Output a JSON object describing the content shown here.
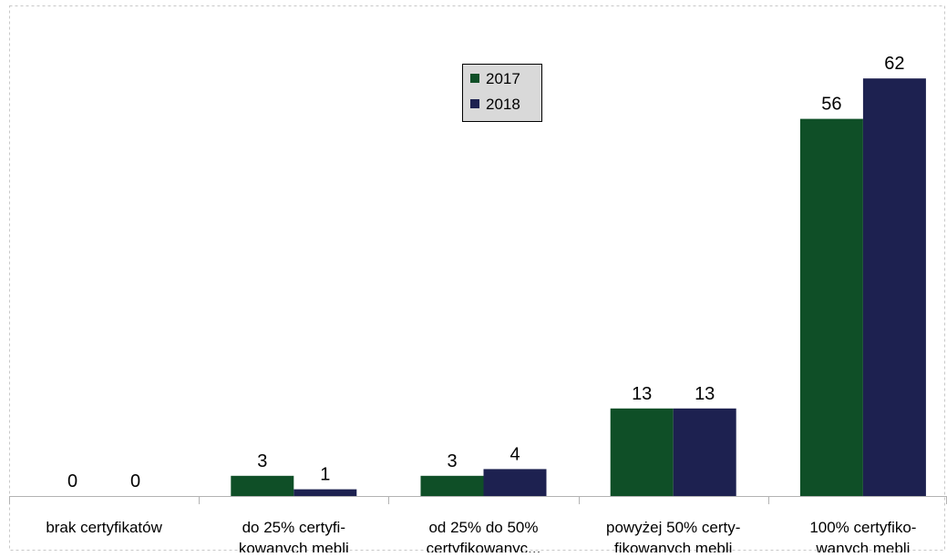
{
  "chart_data": {
    "type": "bar",
    "categories": [
      [
        "brak certyfikatów"
      ],
      [
        "do 25% certyfi-",
        "kowanych mebli"
      ],
      [
        "od 25% do 50%",
        "certyfikowanyc..."
      ],
      [
        "powyżej 50% certy-",
        "fikowanych mebli"
      ],
      [
        "100% certyfiko-",
        "wanych mebli"
      ]
    ],
    "series": [
      {
        "name": "2017",
        "values": [
          0,
          3,
          3,
          13,
          56
        ]
      },
      {
        "name": "2018",
        "values": [
          0,
          1,
          4,
          13,
          62
        ]
      }
    ],
    "ylim": [
      0,
      70
    ],
    "legend_position": "top-center",
    "data_labels": true,
    "grid": false,
    "colors": {
      "series_2017": "#0f4f27",
      "series_2018": "#1d2150",
      "axis": "#b3b3b3",
      "frame": "#c8c8c8",
      "legend_bg": "#d9d9d9",
      "text": "#000000"
    }
  }
}
